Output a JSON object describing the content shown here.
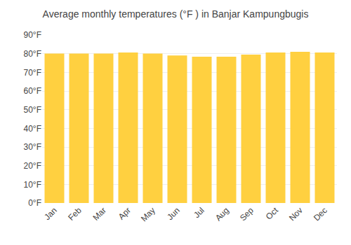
{
  "chart_data": {
    "type": "bar",
    "title": "Average monthly temperatures (°F ) in Banjar Kampungbugis",
    "categories": [
      "Jan",
      "Feb",
      "Mar",
      "Apr",
      "May",
      "Jun",
      "Jul",
      "Aug",
      "Sep",
      "Oct",
      "Nov",
      "Dec"
    ],
    "values": [
      80.1,
      80.1,
      80.1,
      80.6,
      80.1,
      79.0,
      78.4,
      78.4,
      79.5,
      80.6,
      81.0,
      80.6
    ],
    "color": "#FFD040",
    "ylim": [
      0,
      90
    ],
    "yticks": [
      {
        "value": 0,
        "label": "0°F"
      },
      {
        "value": 10,
        "label": "10°F"
      },
      {
        "value": 20,
        "label": "20°F"
      },
      {
        "value": 30,
        "label": "30°F"
      },
      {
        "value": 40,
        "label": "40°F"
      },
      {
        "value": 50,
        "label": "50°F"
      },
      {
        "value": 60,
        "label": "60°F"
      },
      {
        "value": 70,
        "label": "70°F"
      },
      {
        "value": 80,
        "label": "80°F"
      },
      {
        "value": 90,
        "label": "90°F"
      }
    ],
    "grid": true
  }
}
